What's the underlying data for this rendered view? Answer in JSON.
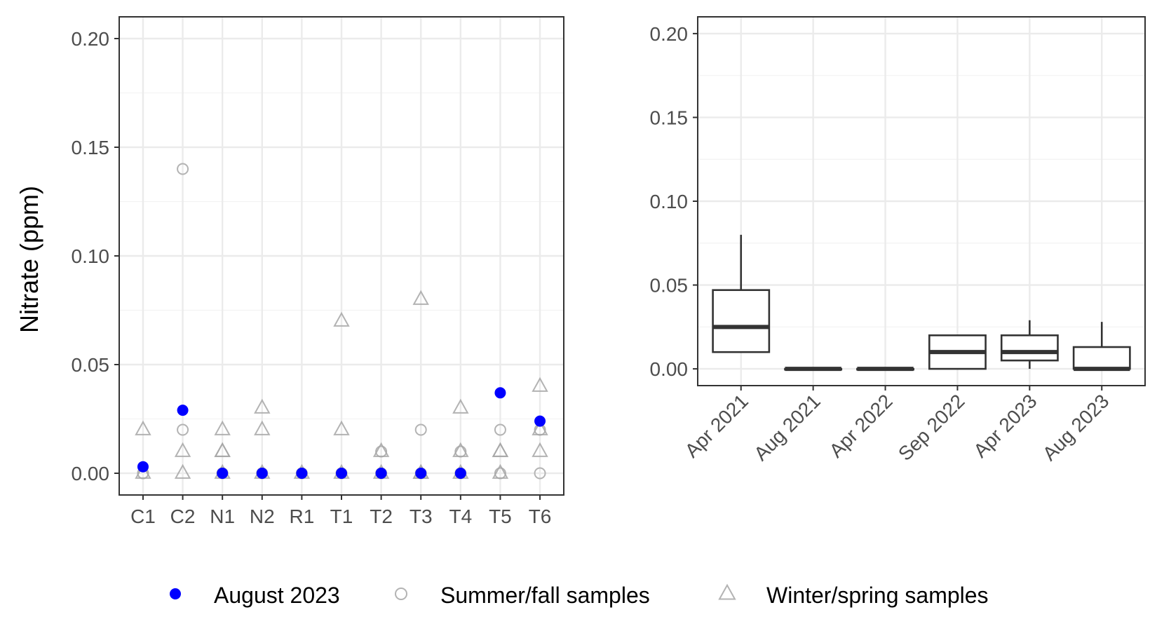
{
  "colors": {
    "august": "#0000ff",
    "summer": "#b3b3b3",
    "winter": "#a6a6a6",
    "grid_major": "#ebebeb",
    "grid_minor": "#f3f3f3",
    "panel_border": "#333333",
    "box": "#333333"
  },
  "legend": {
    "position": "bottom",
    "items": [
      {
        "label": "August 2023",
        "marker": "filled-circle",
        "color": "#0000ff"
      },
      {
        "label": "Summer/fall samples",
        "marker": "open-circle",
        "color": "#b3b3b3"
      },
      {
        "label": "Winter/spring samples",
        "marker": "open-triangle",
        "color": "#a6a6a6"
      }
    ]
  },
  "chart_data": [
    {
      "type": "scatter",
      "title": "",
      "xlabel": "",
      "ylabel": "Nitrate (ppm)",
      "ylim": [
        -0.01,
        0.21
      ],
      "yticks": [
        0.0,
        0.05,
        0.1,
        0.15,
        0.2
      ],
      "ytick_labels": [
        "0.00",
        "0.05",
        "0.10",
        "0.15",
        "0.20"
      ],
      "grid": true,
      "categories": [
        "C1",
        "C2",
        "N1",
        "N2",
        "R1",
        "T1",
        "T2",
        "T3",
        "T4",
        "T5",
        "T6"
      ],
      "series": [
        {
          "name": "Summer/fall samples",
          "marker": "open-circle",
          "points": [
            [
              "C1",
              0
            ],
            [
              "C1",
              0
            ],
            [
              "C2",
              0.14
            ],
            [
              "C2",
              0.02
            ],
            [
              "N1",
              0
            ],
            [
              "N2",
              0
            ],
            [
              "R1",
              0
            ],
            [
              "T1",
              0
            ],
            [
              "T2",
              0.01
            ],
            [
              "T2",
              0
            ],
            [
              "T3",
              0.02
            ],
            [
              "T3",
              0
            ],
            [
              "T4",
              0.01
            ],
            [
              "T4",
              0
            ],
            [
              "T5",
              0.02
            ],
            [
              "T5",
              0
            ],
            [
              "T6",
              0.02
            ],
            [
              "T6",
              0
            ]
          ]
        },
        {
          "name": "Winter/spring samples",
          "marker": "open-triangle",
          "points": [
            [
              "C1",
              0.02
            ],
            [
              "C1",
              0
            ],
            [
              "C2",
              0.01
            ],
            [
              "C2",
              0
            ],
            [
              "N1",
              0.02
            ],
            [
              "N1",
              0.01
            ],
            [
              "N1",
              0.01
            ],
            [
              "N1",
              0
            ],
            [
              "N2",
              0.03
            ],
            [
              "N2",
              0.02
            ],
            [
              "N2",
              0
            ],
            [
              "R1",
              0
            ],
            [
              "T1",
              0.07
            ],
            [
              "T1",
              0.02
            ],
            [
              "T1",
              0
            ],
            [
              "T2",
              0.01
            ],
            [
              "T2",
              0
            ],
            [
              "T3",
              0.08
            ],
            [
              "T3",
              0
            ],
            [
              "T3",
              0
            ],
            [
              "T4",
              0.03
            ],
            [
              "T4",
              0.01
            ],
            [
              "T4",
              0
            ],
            [
              "T5",
              0.01
            ],
            [
              "T5",
              0.01
            ],
            [
              "T5",
              0
            ],
            [
              "T6",
              0.04
            ],
            [
              "T6",
              0.02
            ],
            [
              "T6",
              0.01
            ]
          ]
        },
        {
          "name": "August 2023",
          "marker": "filled-circle",
          "points": [
            [
              "C1",
              0.003
            ],
            [
              "C2",
              0.029
            ],
            [
              "N1",
              0
            ],
            [
              "N2",
              0
            ],
            [
              "R1",
              0
            ],
            [
              "T1",
              0
            ],
            [
              "T2",
              0
            ],
            [
              "T3",
              0
            ],
            [
              "T4",
              0
            ],
            [
              "T5",
              0.037
            ],
            [
              "T6",
              0.024
            ]
          ]
        }
      ]
    },
    {
      "type": "box",
      "title": "",
      "xlabel": "",
      "ylabel": "",
      "ylim": [
        -0.01,
        0.21
      ],
      "yticks": [
        0.0,
        0.05,
        0.1,
        0.15,
        0.2
      ],
      "ytick_labels": [
        "0.00",
        "0.05",
        "0.10",
        "0.15",
        "0.20"
      ],
      "grid": true,
      "categories": [
        "Apr 2021",
        "Aug 2021",
        "Apr 2022",
        "Sep 2022",
        "Apr 2023",
        "Aug 2023"
      ],
      "boxes": [
        {
          "label": "Apr 2021",
          "min": 0.01,
          "q1": 0.01,
          "median": 0.025,
          "q3": 0.047,
          "max": 0.08
        },
        {
          "label": "Aug 2021",
          "min": 0,
          "q1": 0,
          "median": 0,
          "q3": 0,
          "max": 0
        },
        {
          "label": "Apr 2022",
          "min": 0,
          "q1": 0,
          "median": 0,
          "q3": 0,
          "max": 0
        },
        {
          "label": "Sep 2022",
          "min": 0,
          "q1": 0,
          "median": 0.01,
          "q3": 0.02,
          "max": 0.02
        },
        {
          "label": "Apr 2023",
          "min": 0,
          "q1": 0.005,
          "median": 0.01,
          "q3": 0.02,
          "max": 0.029
        },
        {
          "label": "Aug 2023",
          "min": 0,
          "q1": 0,
          "median": 0,
          "q3": 0.013,
          "max": 0.028
        }
      ]
    }
  ]
}
